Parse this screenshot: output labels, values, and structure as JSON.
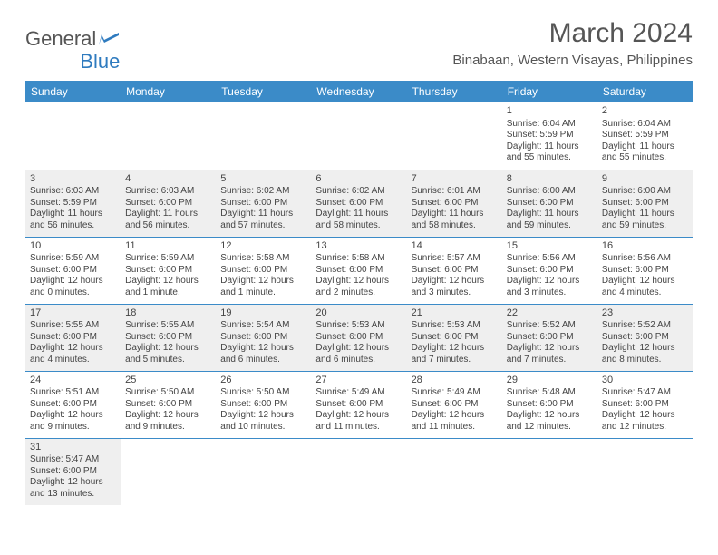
{
  "logo": {
    "general": "General",
    "blue": "Blue"
  },
  "header": {
    "title": "March 2024",
    "location": "Binabaan, Western Visayas, Philippines"
  },
  "colors": {
    "header_bg": "#3b8bc8",
    "header_text": "#ffffff",
    "row_border": "#3b8bc8",
    "shaded_bg": "#efefef",
    "text": "#444444",
    "title_text": "#555555"
  },
  "daynames": [
    "Sunday",
    "Monday",
    "Tuesday",
    "Wednesday",
    "Thursday",
    "Friday",
    "Saturday"
  ],
  "weeks": [
    [
      {
        "day": "",
        "sunrise": "",
        "sunset": "",
        "daylight": "",
        "shaded": false,
        "empty": true
      },
      {
        "day": "",
        "sunrise": "",
        "sunset": "",
        "daylight": "",
        "shaded": false,
        "empty": true
      },
      {
        "day": "",
        "sunrise": "",
        "sunset": "",
        "daylight": "",
        "shaded": false,
        "empty": true
      },
      {
        "day": "",
        "sunrise": "",
        "sunset": "",
        "daylight": "",
        "shaded": false,
        "empty": true
      },
      {
        "day": "",
        "sunrise": "",
        "sunset": "",
        "daylight": "",
        "shaded": false,
        "empty": true
      },
      {
        "day": "1",
        "sunrise": "Sunrise: 6:04 AM",
        "sunset": "Sunset: 5:59 PM",
        "daylight": "Daylight: 11 hours and 55 minutes.",
        "shaded": false
      },
      {
        "day": "2",
        "sunrise": "Sunrise: 6:04 AM",
        "sunset": "Sunset: 5:59 PM",
        "daylight": "Daylight: 11 hours and 55 minutes.",
        "shaded": false
      }
    ],
    [
      {
        "day": "3",
        "sunrise": "Sunrise: 6:03 AM",
        "sunset": "Sunset: 5:59 PM",
        "daylight": "Daylight: 11 hours and 56 minutes.",
        "shaded": true
      },
      {
        "day": "4",
        "sunrise": "Sunrise: 6:03 AM",
        "sunset": "Sunset: 6:00 PM",
        "daylight": "Daylight: 11 hours and 56 minutes.",
        "shaded": true
      },
      {
        "day": "5",
        "sunrise": "Sunrise: 6:02 AM",
        "sunset": "Sunset: 6:00 PM",
        "daylight": "Daylight: 11 hours and 57 minutes.",
        "shaded": true
      },
      {
        "day": "6",
        "sunrise": "Sunrise: 6:02 AM",
        "sunset": "Sunset: 6:00 PM",
        "daylight": "Daylight: 11 hours and 58 minutes.",
        "shaded": true
      },
      {
        "day": "7",
        "sunrise": "Sunrise: 6:01 AM",
        "sunset": "Sunset: 6:00 PM",
        "daylight": "Daylight: 11 hours and 58 minutes.",
        "shaded": true
      },
      {
        "day": "8",
        "sunrise": "Sunrise: 6:00 AM",
        "sunset": "Sunset: 6:00 PM",
        "daylight": "Daylight: 11 hours and 59 minutes.",
        "shaded": true
      },
      {
        "day": "9",
        "sunrise": "Sunrise: 6:00 AM",
        "sunset": "Sunset: 6:00 PM",
        "daylight": "Daylight: 11 hours and 59 minutes.",
        "shaded": true
      }
    ],
    [
      {
        "day": "10",
        "sunrise": "Sunrise: 5:59 AM",
        "sunset": "Sunset: 6:00 PM",
        "daylight": "Daylight: 12 hours and 0 minutes.",
        "shaded": false
      },
      {
        "day": "11",
        "sunrise": "Sunrise: 5:59 AM",
        "sunset": "Sunset: 6:00 PM",
        "daylight": "Daylight: 12 hours and 1 minute.",
        "shaded": false
      },
      {
        "day": "12",
        "sunrise": "Sunrise: 5:58 AM",
        "sunset": "Sunset: 6:00 PM",
        "daylight": "Daylight: 12 hours and 1 minute.",
        "shaded": false
      },
      {
        "day": "13",
        "sunrise": "Sunrise: 5:58 AM",
        "sunset": "Sunset: 6:00 PM",
        "daylight": "Daylight: 12 hours and 2 minutes.",
        "shaded": false
      },
      {
        "day": "14",
        "sunrise": "Sunrise: 5:57 AM",
        "sunset": "Sunset: 6:00 PM",
        "daylight": "Daylight: 12 hours and 3 minutes.",
        "shaded": false
      },
      {
        "day": "15",
        "sunrise": "Sunrise: 5:56 AM",
        "sunset": "Sunset: 6:00 PM",
        "daylight": "Daylight: 12 hours and 3 minutes.",
        "shaded": false
      },
      {
        "day": "16",
        "sunrise": "Sunrise: 5:56 AM",
        "sunset": "Sunset: 6:00 PM",
        "daylight": "Daylight: 12 hours and 4 minutes.",
        "shaded": false
      }
    ],
    [
      {
        "day": "17",
        "sunrise": "Sunrise: 5:55 AM",
        "sunset": "Sunset: 6:00 PM",
        "daylight": "Daylight: 12 hours and 4 minutes.",
        "shaded": true
      },
      {
        "day": "18",
        "sunrise": "Sunrise: 5:55 AM",
        "sunset": "Sunset: 6:00 PM",
        "daylight": "Daylight: 12 hours and 5 minutes.",
        "shaded": true
      },
      {
        "day": "19",
        "sunrise": "Sunrise: 5:54 AM",
        "sunset": "Sunset: 6:00 PM",
        "daylight": "Daylight: 12 hours and 6 minutes.",
        "shaded": true
      },
      {
        "day": "20",
        "sunrise": "Sunrise: 5:53 AM",
        "sunset": "Sunset: 6:00 PM",
        "daylight": "Daylight: 12 hours and 6 minutes.",
        "shaded": true
      },
      {
        "day": "21",
        "sunrise": "Sunrise: 5:53 AM",
        "sunset": "Sunset: 6:00 PM",
        "daylight": "Daylight: 12 hours and 7 minutes.",
        "shaded": true
      },
      {
        "day": "22",
        "sunrise": "Sunrise: 5:52 AM",
        "sunset": "Sunset: 6:00 PM",
        "daylight": "Daylight: 12 hours and 7 minutes.",
        "shaded": true
      },
      {
        "day": "23",
        "sunrise": "Sunrise: 5:52 AM",
        "sunset": "Sunset: 6:00 PM",
        "daylight": "Daylight: 12 hours and 8 minutes.",
        "shaded": true
      }
    ],
    [
      {
        "day": "24",
        "sunrise": "Sunrise: 5:51 AM",
        "sunset": "Sunset: 6:00 PM",
        "daylight": "Daylight: 12 hours and 9 minutes.",
        "shaded": false
      },
      {
        "day": "25",
        "sunrise": "Sunrise: 5:50 AM",
        "sunset": "Sunset: 6:00 PM",
        "daylight": "Daylight: 12 hours and 9 minutes.",
        "shaded": false
      },
      {
        "day": "26",
        "sunrise": "Sunrise: 5:50 AM",
        "sunset": "Sunset: 6:00 PM",
        "daylight": "Daylight: 12 hours and 10 minutes.",
        "shaded": false
      },
      {
        "day": "27",
        "sunrise": "Sunrise: 5:49 AM",
        "sunset": "Sunset: 6:00 PM",
        "daylight": "Daylight: 12 hours and 11 minutes.",
        "shaded": false
      },
      {
        "day": "28",
        "sunrise": "Sunrise: 5:49 AM",
        "sunset": "Sunset: 6:00 PM",
        "daylight": "Daylight: 12 hours and 11 minutes.",
        "shaded": false
      },
      {
        "day": "29",
        "sunrise": "Sunrise: 5:48 AM",
        "sunset": "Sunset: 6:00 PM",
        "daylight": "Daylight: 12 hours and 12 minutes.",
        "shaded": false
      },
      {
        "day": "30",
        "sunrise": "Sunrise: 5:47 AM",
        "sunset": "Sunset: 6:00 PM",
        "daylight": "Daylight: 12 hours and 12 minutes.",
        "shaded": false
      }
    ],
    [
      {
        "day": "31",
        "sunrise": "Sunrise: 5:47 AM",
        "sunset": "Sunset: 6:00 PM",
        "daylight": "Daylight: 12 hours and 13 minutes.",
        "shaded": true
      },
      {
        "day": "",
        "sunrise": "",
        "sunset": "",
        "daylight": "",
        "shaded": false,
        "empty": true
      },
      {
        "day": "",
        "sunrise": "",
        "sunset": "",
        "daylight": "",
        "shaded": false,
        "empty": true
      },
      {
        "day": "",
        "sunrise": "",
        "sunset": "",
        "daylight": "",
        "shaded": false,
        "empty": true
      },
      {
        "day": "",
        "sunrise": "",
        "sunset": "",
        "daylight": "",
        "shaded": false,
        "empty": true
      },
      {
        "day": "",
        "sunrise": "",
        "sunset": "",
        "daylight": "",
        "shaded": false,
        "empty": true
      },
      {
        "day": "",
        "sunrise": "",
        "sunset": "",
        "daylight": "",
        "shaded": false,
        "empty": true
      }
    ]
  ]
}
